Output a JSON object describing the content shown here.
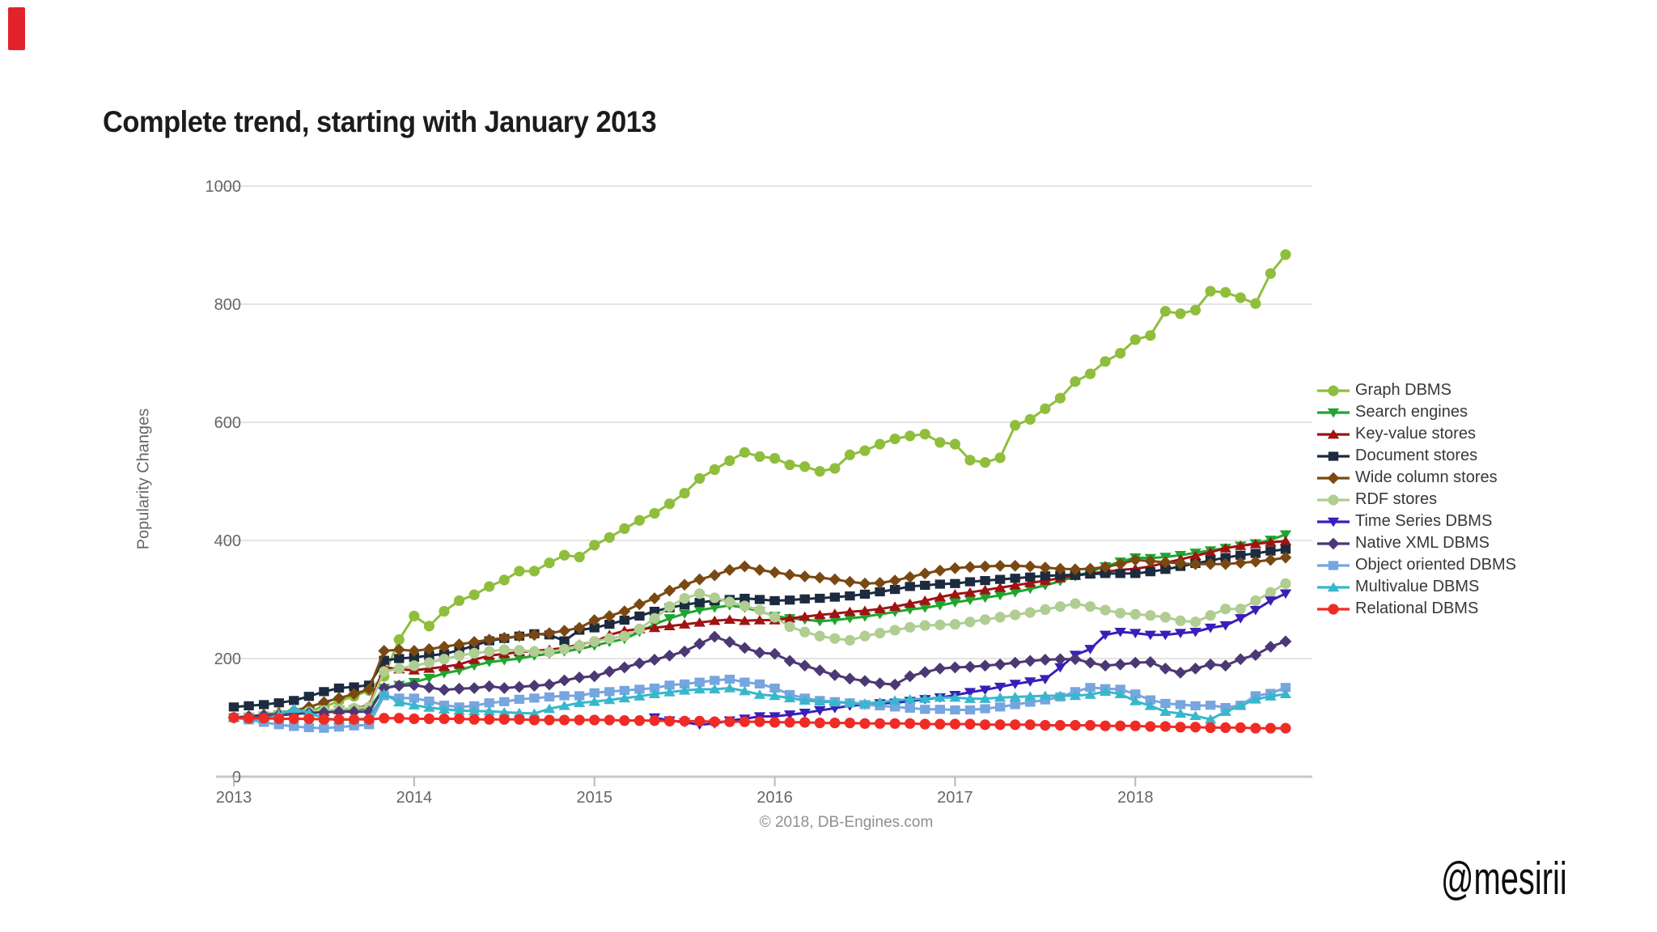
{
  "title": "Complete trend, starting with January 2013",
  "watermark": "@mesirii",
  "accent_bar_color": "#e2232a",
  "chart_data": {
    "type": "line",
    "title": "Complete trend, starting with January 2013",
    "ylabel": "Popularity Changes",
    "xlabel": "",
    "copyright": "© 2018, DB-Engines.com",
    "x_unit": "month",
    "x_range": [
      "2013-01",
      "2018-11"
    ],
    "ylim": [
      0,
      1000
    ],
    "yticks": [
      0,
      200,
      400,
      600,
      800,
      1000
    ],
    "xticks": [
      "2013",
      "2014",
      "2015",
      "2016",
      "2017",
      "2018"
    ],
    "grid": "horizontal",
    "legend_position": "right",
    "series": [
      {
        "name": "Graph DBMS",
        "color": "#8fbe3c",
        "marker": "circle",
        "values": [
          100,
          101,
          103,
          104,
          107,
          112,
          118,
          128,
          136,
          146,
          170,
          232,
          272,
          255,
          280,
          298,
          308,
          322,
          333,
          348,
          348,
          362,
          375,
          372,
          392,
          405,
          420,
          434,
          446,
          462,
          480,
          505,
          520,
          535,
          549,
          542,
          539,
          528,
          525,
          517,
          522,
          545,
          552,
          563,
          572,
          577,
          580,
          566,
          563,
          536,
          532,
          540,
          595,
          605,
          623,
          641,
          669,
          682,
          703,
          717,
          740,
          747,
          788,
          784,
          790,
          822,
          820,
          811,
          801,
          852,
          884
        ]
      },
      {
        "name": "Search engines",
        "color": "#1fa52f",
        "marker": "triangle-down",
        "values": [
          100,
          101,
          103,
          105,
          107,
          109,
          111,
          113,
          114,
          115,
          150,
          155,
          160,
          167,
          175,
          180,
          188,
          194,
          197,
          200,
          205,
          208,
          212,
          216,
          222,
          228,
          233,
          245,
          258,
          268,
          276,
          282,
          286,
          290,
          286,
          280,
          272,
          268,
          266,
          263,
          265,
          268,
          271,
          275,
          279,
          283,
          286,
          290,
          295,
          299,
          303,
          307,
          312,
          318,
          324,
          331,
          339,
          347,
          356,
          364,
          371,
          370,
          372,
          375,
          379,
          383,
          387,
          391,
          395,
          401,
          410
        ]
      },
      {
        "name": "Key-value stores",
        "color": "#a01313",
        "marker": "triangle-up",
        "values": [
          100,
          101,
          102,
          104,
          106,
          108,
          110,
          113,
          116,
          120,
          185,
          182,
          180,
          183,
          186,
          190,
          198,
          205,
          208,
          211,
          213,
          215,
          218,
          224,
          228,
          240,
          247,
          250,
          252,
          255,
          258,
          261,
          264,
          266,
          264,
          265,
          265,
          268,
          271,
          274,
          276,
          279,
          281,
          284,
          288,
          293,
          298,
          304,
          309,
          312,
          316,
          320,
          324,
          328,
          332,
          336,
          340,
          344,
          347,
          350,
          352,
          356,
          362,
          368,
          374,
          380,
          387,
          391,
          394,
          397,
          399
        ]
      },
      {
        "name": "Document stores",
        "color": "#1c2b3f",
        "marker": "square",
        "values": [
          118,
          120,
          122,
          125,
          129,
          136,
          144,
          150,
          152,
          155,
          197,
          200,
          202,
          205,
          208,
          214,
          222,
          230,
          234,
          238,
          242,
          240,
          230,
          248,
          252,
          258,
          265,
          272,
          280,
          286,
          291,
          295,
          298,
          300,
          302,
          300,
          298,
          299,
          301,
          302,
          304,
          306,
          309,
          313,
          317,
          322,
          324,
          326,
          327,
          330,
          332,
          334,
          336,
          338,
          340,
          341,
          342,
          343,
          344,
          344,
          344,
          347,
          351,
          356,
          361,
          366,
          371,
          375,
          378,
          382,
          385
        ]
      },
      {
        "name": "Wide column stores",
        "color": "#7a4913",
        "marker": "diamond",
        "values": [
          100,
          102,
          105,
          108,
          112,
          118,
          126,
          133,
          140,
          148,
          213,
          215,
          213,
          216,
          220,
          224,
          228,
          232,
          235,
          238,
          240,
          243,
          247,
          252,
          265,
          272,
          280,
          292,
          302,
          315,
          325,
          334,
          341,
          350,
          356,
          350,
          346,
          342,
          339,
          337,
          334,
          330,
          327,
          328,
          332,
          338,
          344,
          349,
          353,
          355,
          356,
          357,
          357,
          356,
          354,
          352,
          351,
          352,
          355,
          360,
          367,
          365,
          363,
          361,
          360,
          360,
          360,
          362,
          364,
          367,
          371
        ]
      },
      {
        "name": "RDF stores",
        "color": "#b0cd92",
        "marker": "circle",
        "values": [
          100,
          102,
          104,
          106,
          108,
          110,
          112,
          114,
          116,
          118,
          178,
          183,
          188,
          193,
          199,
          205,
          209,
          212,
          215,
          214,
          212,
          211,
          216,
          222,
          229,
          234,
          238,
          250,
          268,
          288,
          302,
          310,
          303,
          296,
          289,
          282,
          270,
          254,
          245,
          238,
          234,
          231,
          238,
          243,
          248,
          253,
          256,
          257,
          258,
          262,
          266,
          270,
          274,
          278,
          283,
          288,
          293,
          288,
          282,
          277,
          275,
          273,
          270,
          264,
          262,
          273,
          284,
          284,
          298,
          312,
          327
        ]
      },
      {
        "name": "Time Series DBMS",
        "color": "#3a1eb8",
        "marker": "triangle-down",
        "values": [
          null,
          null,
          null,
          null,
          null,
          null,
          null,
          null,
          null,
          null,
          null,
          null,
          null,
          null,
          null,
          null,
          null,
          null,
          null,
          null,
          null,
          null,
          null,
          null,
          null,
          null,
          null,
          null,
          100,
          95,
          92,
          88,
          90,
          95,
          98,
          102,
          102,
          105,
          108,
          112,
          116,
          120,
          122,
          124,
          125,
          128,
          131,
          134,
          138,
          143,
          147,
          152,
          157,
          161,
          165,
          185,
          206,
          216,
          240,
          245,
          243,
          240,
          240,
          243,
          245,
          252,
          256,
          268,
          282,
          298,
          310
        ]
      },
      {
        "name": "Native XML DBMS",
        "color": "#4c3874",
        "marker": "diamond",
        "values": [
          100,
          102,
          104,
          105,
          106,
          108,
          109,
          110,
          110,
          110,
          150,
          154,
          155,
          151,
          147,
          149,
          150,
          153,
          150,
          152,
          154,
          156,
          163,
          168,
          170,
          178,
          185,
          192,
          198,
          205,
          212,
          225,
          237,
          228,
          218,
          210,
          208,
          196,
          188,
          180,
          172,
          166,
          162,
          158,
          156,
          170,
          177,
          183,
          185,
          186,
          188,
          190,
          193,
          196,
          198,
          199,
          199,
          193,
          188,
          190,
          193,
          194,
          183,
          176,
          183,
          190,
          188,
          199,
          206,
          220,
          229
        ]
      },
      {
        "name": "Object oriented DBMS",
        "color": "#77a5df",
        "marker": "square",
        "values": [
          100,
          96,
          92,
          88,
          85,
          83,
          82,
          84,
          86,
          88,
          137,
          133,
          133,
          128,
          121,
          118,
          120,
          125,
          127,
          131,
          133,
          135,
          137,
          137,
          142,
          144,
          146,
          148,
          150,
          155,
          157,
          160,
          163,
          165,
          160,
          157,
          150,
          139,
          133,
          129,
          127,
          125,
          122,
          120,
          118,
          116,
          114,
          114,
          113,
          113,
          115,
          118,
          122,
          126,
          130,
          135,
          144,
          151,
          149,
          148,
          140,
          130,
          124,
          122,
          120,
          121,
          117,
          121,
          137,
          141,
          151
        ]
      },
      {
        "name": "Multivalue DBMS",
        "color": "#38b7cc",
        "marker": "triangle-up",
        "values": [
          100,
          98,
          97,
          105,
          115,
          108,
          99,
          96,
          97,
          99,
          140,
          126,
          121,
          117,
          114,
          112,
          111,
          111,
          109,
          108,
          107,
          115,
          120,
          125,
          127,
          130,
          133,
          136,
          140,
          143,
          146,
          148,
          148,
          150,
          145,
          139,
          137,
          133,
          129,
          127,
          126,
          125,
          124,
          126,
          129,
          131,
          132,
          134,
          134,
          132,
          132,
          134,
          135,
          136,
          137,
          137,
          137,
          139,
          144,
          140,
          128,
          120,
          110,
          107,
          103,
          97,
          110,
          120,
          131,
          136,
          140
        ]
      },
      {
        "name": "Relational DBMS",
        "color": "#ef2b26",
        "marker": "circle",
        "values": [
          100,
          99,
          99,
          98,
          98,
          98,
          97,
          97,
          97,
          97,
          99,
          99,
          98,
          98,
          98,
          98,
          97,
          97,
          97,
          97,
          96,
          96,
          96,
          96,
          96,
          96,
          95,
          95,
          95,
          94,
          94,
          94,
          93,
          93,
          93,
          93,
          92,
          92,
          92,
          91,
          91,
          91,
          90,
          90,
          90,
          90,
          89,
          89,
          89,
          89,
          88,
          88,
          88,
          88,
          87,
          87,
          87,
          87,
          86,
          86,
          86,
          85,
          85,
          84,
          84,
          83,
          83,
          83,
          82,
          82,
          82
        ]
      }
    ]
  }
}
